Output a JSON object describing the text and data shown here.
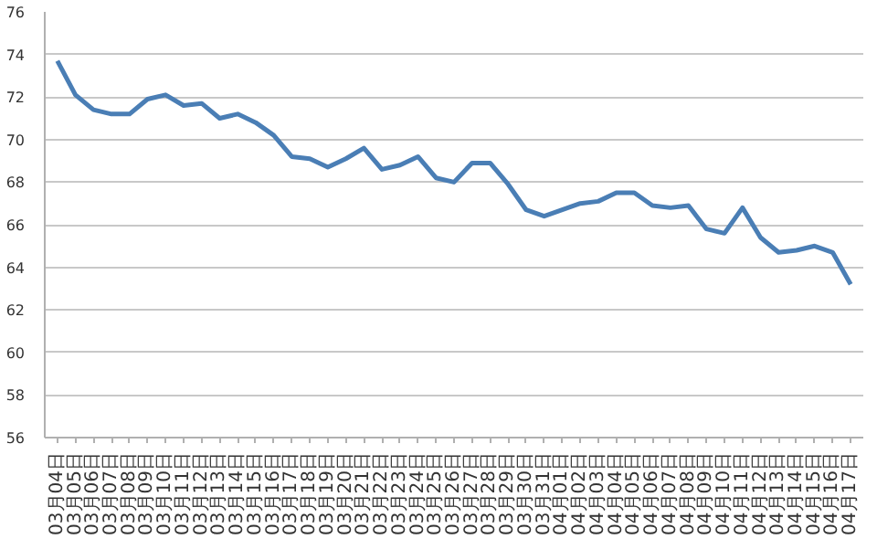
{
  "chart_data": {
    "type": "line",
    "categories": [
      "03月04日",
      "03月05日",
      "03月06日",
      "03月07日",
      "03月08日",
      "03月09日",
      "03月10日",
      "03月11日",
      "03月12日",
      "03月13日",
      "03月14日",
      "03月15日",
      "03月16日",
      "03月17日",
      "03月18日",
      "03月19日",
      "03月20日",
      "03月21日",
      "03月22日",
      "03月23日",
      "03月24日",
      "03月25日",
      "03月26日",
      "03月27日",
      "03月28日",
      "03月29日",
      "03月30日",
      "03月31日",
      "04月01日",
      "04月02日",
      "04月03日",
      "04月04日",
      "04月05日",
      "04月06日",
      "04月07日",
      "04月08日",
      "04月09日",
      "04月10日",
      "04月11日",
      "04月12日",
      "04月13日",
      "04月14日",
      "04月15日",
      "04月16日",
      "04月17日"
    ],
    "series": [
      {
        "color": "#4a7eb5",
        "values": [
          73.7,
          72.1,
          71.4,
          71.2,
          71.2,
          71.9,
          72.1,
          71.6,
          71.7,
          71.0,
          71.2,
          70.8,
          70.2,
          69.2,
          69.1,
          68.7,
          69.1,
          69.6,
          68.6,
          68.8,
          69.2,
          68.2,
          68.0,
          68.9,
          68.9,
          67.9,
          66.7,
          66.4,
          66.7,
          67.0,
          67.1,
          67.5,
          67.5,
          66.9,
          66.8,
          66.9,
          65.8,
          65.6,
          66.8,
          65.4,
          64.7,
          64.8,
          65.0,
          64.7,
          63.2
        ]
      }
    ],
    "ylim": [
      56,
      76
    ],
    "yticks": [
      56,
      58,
      60,
      62,
      64,
      66,
      68,
      70,
      72,
      74,
      76
    ],
    "grid": "y",
    "marker": "none",
    "line_style": "solid"
  }
}
